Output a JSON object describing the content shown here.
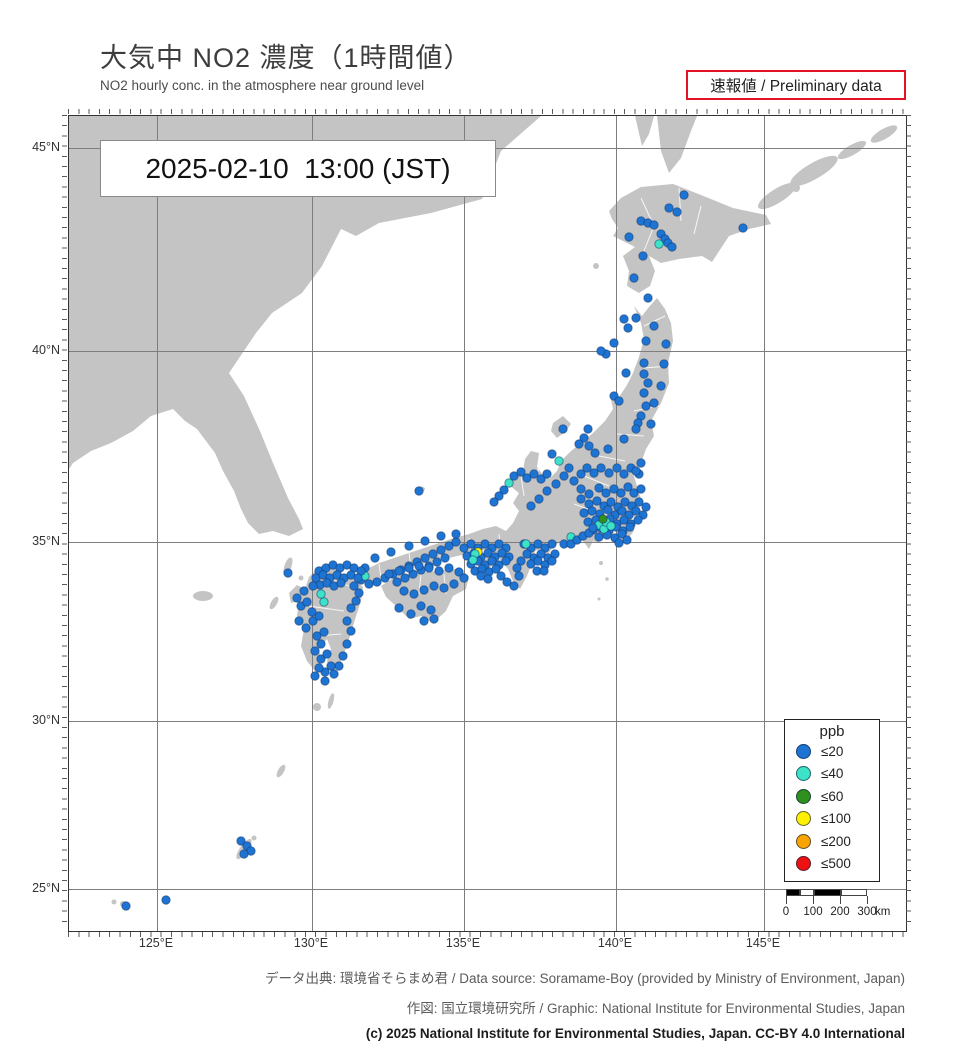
{
  "title": "大気中 NO2 濃度（1時間値）",
  "subtitle": "NO2 hourly conc. in the atmosphere near ground level",
  "preliminary_badge": "速報値 / Preliminary data",
  "timestamp": "2025-02-10  13:00 (JST)",
  "map": {
    "lat_labels": [
      "45°N",
      "40°N",
      "35°N",
      "30°N",
      "25°N"
    ],
    "lon_labels": [
      "125°E",
      "130°E",
      "135°E",
      "140°E",
      "145°E"
    ],
    "land_color": "#c4c4c4",
    "sea_color": "#ffffff",
    "grid_color": "#7d7d7d",
    "dot_colors": {
      "b": "#1e74d2",
      "c": "#3ce3c6",
      "g": "#2f8f1f",
      "y": "#ffef00"
    },
    "stations": [
      [
        615,
        79
      ],
      [
        600,
        92
      ],
      [
        572,
        105
      ],
      [
        579,
        107
      ],
      [
        585,
        109
      ],
      [
        592,
        118
      ],
      [
        596,
        123
      ],
      [
        599,
        127
      ],
      [
        603,
        131
      ],
      [
        574,
        140
      ],
      [
        565,
        162
      ],
      [
        674,
        112
      ],
      [
        560,
        121
      ],
      [
        608,
        96
      ],
      [
        590,
        128,
        "c"
      ],
      [
        579,
        182
      ],
      [
        555,
        203
      ],
      [
        567,
        202
      ],
      [
        559,
        212
      ],
      [
        585,
        210
      ],
      [
        577,
        225
      ],
      [
        597,
        228
      ],
      [
        545,
        227
      ],
      [
        537,
        238
      ],
      [
        532,
        235
      ],
      [
        595,
        248
      ],
      [
        575,
        247
      ],
      [
        575,
        258
      ],
      [
        579,
        267
      ],
      [
        557,
        257
      ],
      [
        545,
        280
      ],
      [
        550,
        285
      ],
      [
        575,
        277
      ],
      [
        592,
        270
      ],
      [
        577,
        290
      ],
      [
        585,
        287
      ],
      [
        572,
        300
      ],
      [
        569,
        307
      ],
      [
        567,
        313
      ],
      [
        582,
        308
      ],
      [
        519,
        313
      ],
      [
        494,
        313
      ],
      [
        515,
        322
      ],
      [
        510,
        328
      ],
      [
        539,
        333
      ],
      [
        555,
        323
      ],
      [
        520,
        330
      ],
      [
        526,
        337
      ],
      [
        490,
        345,
        "c"
      ],
      [
        483,
        338
      ],
      [
        495,
        360
      ],
      [
        487,
        368
      ],
      [
        478,
        375
      ],
      [
        470,
        383
      ],
      [
        500,
        352
      ],
      [
        505,
        365
      ],
      [
        512,
        358
      ],
      [
        518,
        352
      ],
      [
        525,
        357
      ],
      [
        532,
        352
      ],
      [
        540,
        357
      ],
      [
        548,
        352
      ],
      [
        555,
        358
      ],
      [
        562,
        352
      ],
      [
        570,
        358
      ],
      [
        572,
        347
      ],
      [
        567,
        355
      ],
      [
        512,
        373
      ],
      [
        520,
        378
      ],
      [
        530,
        372
      ],
      [
        537,
        377
      ],
      [
        545,
        373
      ],
      [
        552,
        377
      ],
      [
        559,
        371
      ],
      [
        565,
        377
      ],
      [
        572,
        373
      ],
      [
        512,
        383
      ],
      [
        520,
        388
      ],
      [
        528,
        385
      ],
      [
        535,
        390
      ],
      [
        542,
        386
      ],
      [
        549,
        391
      ],
      [
        556,
        386
      ],
      [
        563,
        390
      ],
      [
        570,
        386
      ],
      [
        577,
        391
      ],
      [
        515,
        397
      ],
      [
        523,
        395
      ],
      [
        531,
        398
      ],
      [
        539,
        394
      ],
      [
        546,
        399
      ],
      [
        553,
        395
      ],
      [
        560,
        399
      ],
      [
        567,
        395
      ],
      [
        574,
        399
      ],
      [
        519,
        406
      ],
      [
        527,
        404
      ],
      [
        534,
        407
      ],
      [
        541,
        403
      ],
      [
        548,
        408
      ],
      [
        555,
        404
      ],
      [
        562,
        408
      ],
      [
        569,
        404
      ],
      [
        524,
        414
      ],
      [
        532,
        412
      ],
      [
        540,
        415
      ],
      [
        547,
        411
      ],
      [
        554,
        415
      ],
      [
        561,
        411
      ],
      [
        530,
        421
      ],
      [
        538,
        419
      ],
      [
        546,
        422
      ],
      [
        553,
        418
      ],
      [
        558,
        424
      ],
      [
        550,
        427
      ],
      [
        530,
        409,
        "c"
      ],
      [
        535,
        413,
        "c"
      ],
      [
        537,
        406,
        "c"
      ],
      [
        542,
        410,
        "c"
      ],
      [
        534,
        403,
        "g"
      ],
      [
        440,
        367,
        "c"
      ],
      [
        445,
        360
      ],
      [
        452,
        356
      ],
      [
        458,
        362
      ],
      [
        465,
        358
      ],
      [
        472,
        363
      ],
      [
        478,
        358
      ],
      [
        435,
        374
      ],
      [
        430,
        380
      ],
      [
        425,
        386
      ],
      [
        462,
        390
      ],
      [
        502,
        421,
        "c"
      ],
      [
        495,
        428
      ],
      [
        502,
        428
      ],
      [
        508,
        424
      ],
      [
        514,
        420
      ],
      [
        520,
        417
      ],
      [
        524,
        412
      ],
      [
        455,
        428
      ],
      [
        462,
        432
      ],
      [
        469,
        428
      ],
      [
        476,
        432
      ],
      [
        483,
        428
      ],
      [
        458,
        438
      ],
      [
        465,
        442
      ],
      [
        472,
        438
      ],
      [
        479,
        442
      ],
      [
        486,
        438
      ],
      [
        462,
        448
      ],
      [
        469,
        445
      ],
      [
        476,
        449
      ],
      [
        483,
        445
      ],
      [
        452,
        445
      ],
      [
        448,
        452
      ],
      [
        468,
        455
      ],
      [
        475,
        455
      ],
      [
        457,
        428,
        "c"
      ],
      [
        395,
        432
      ],
      [
        402,
        428
      ],
      [
        409,
        432
      ],
      [
        416,
        428
      ],
      [
        423,
        432
      ],
      [
        430,
        428
      ],
      [
        437,
        432
      ],
      [
        398,
        440
      ],
      [
        405,
        437
      ],
      [
        412,
        441
      ],
      [
        419,
        437
      ],
      [
        426,
        441
      ],
      [
        433,
        437
      ],
      [
        440,
        441
      ],
      [
        402,
        448
      ],
      [
        409,
        445
      ],
      [
        416,
        449
      ],
      [
        423,
        445
      ],
      [
        430,
        449
      ],
      [
        437,
        445
      ],
      [
        406,
        455
      ],
      [
        413,
        453
      ],
      [
        420,
        456
      ],
      [
        427,
        453
      ],
      [
        412,
        460
      ],
      [
        419,
        463
      ],
      [
        432,
        460
      ],
      [
        438,
        466
      ],
      [
        445,
        470
      ],
      [
        450,
        460
      ],
      [
        409,
        436,
        "y"
      ],
      [
        406,
        438,
        "c"
      ],
      [
        404,
        444,
        "c"
      ],
      [
        380,
        430
      ],
      [
        372,
        434
      ],
      [
        364,
        438
      ],
      [
        356,
        442
      ],
      [
        348,
        446
      ],
      [
        340,
        450
      ],
      [
        332,
        454
      ],
      [
        324,
        458
      ],
      [
        316,
        462
      ],
      [
        308,
        466
      ],
      [
        300,
        468
      ],
      [
        292,
        464
      ],
      [
        387,
        426
      ],
      [
        376,
        442
      ],
      [
        368,
        446
      ],
      [
        360,
        450
      ],
      [
        352,
        454
      ],
      [
        344,
        458
      ],
      [
        336,
        462
      ],
      [
        328,
        466
      ],
      [
        387,
        418
      ],
      [
        372,
        420
      ],
      [
        356,
        425
      ],
      [
        340,
        430
      ],
      [
        322,
        436
      ],
      [
        306,
        442
      ],
      [
        296,
        452
      ],
      [
        350,
        375
      ],
      [
        296,
        460,
        "c"
      ],
      [
        320,
        458
      ],
      [
        330,
        455
      ],
      [
        340,
        452
      ],
      [
        350,
        450
      ],
      [
        360,
        452
      ],
      [
        370,
        455
      ],
      [
        380,
        452
      ],
      [
        390,
        456
      ],
      [
        395,
        462
      ],
      [
        385,
        468
      ],
      [
        375,
        472
      ],
      [
        365,
        470
      ],
      [
        355,
        474
      ],
      [
        345,
        478
      ],
      [
        335,
        475
      ],
      [
        352,
        490
      ],
      [
        362,
        494
      ],
      [
        342,
        498
      ],
      [
        330,
        492
      ],
      [
        355,
        505
      ],
      [
        365,
        503
      ],
      [
        250,
        455
      ],
      [
        257,
        452
      ],
      [
        264,
        449
      ],
      [
        271,
        452
      ],
      [
        278,
        449
      ],
      [
        285,
        452
      ],
      [
        292,
        455
      ],
      [
        247,
        462
      ],
      [
        254,
        459
      ],
      [
        261,
        462
      ],
      [
        268,
        459
      ],
      [
        275,
        462
      ],
      [
        282,
        459
      ],
      [
        289,
        462
      ],
      [
        251,
        469
      ],
      [
        258,
        467
      ],
      [
        265,
        470
      ],
      [
        272,
        467
      ],
      [
        244,
        470
      ],
      [
        252,
        478,
        "c"
      ],
      [
        255,
        486,
        "c"
      ],
      [
        235,
        475
      ],
      [
        228,
        482
      ],
      [
        232,
        490
      ],
      [
        238,
        486
      ],
      [
        230,
        505
      ],
      [
        237,
        512
      ],
      [
        244,
        505
      ],
      [
        250,
        500
      ],
      [
        243,
        496
      ],
      [
        248,
        520
      ],
      [
        255,
        516
      ],
      [
        252,
        528
      ],
      [
        246,
        535
      ],
      [
        252,
        543
      ],
      [
        258,
        538
      ],
      [
        285,
        470
      ],
      [
        290,
        477
      ],
      [
        287,
        485
      ],
      [
        282,
        492
      ],
      [
        278,
        505
      ],
      [
        282,
        515
      ],
      [
        278,
        528
      ],
      [
        274,
        540
      ],
      [
        270,
        550
      ],
      [
        262,
        550
      ],
      [
        256,
        556
      ],
      [
        250,
        552
      ],
      [
        246,
        560
      ],
      [
        256,
        565
      ],
      [
        265,
        558
      ],
      [
        219,
        457
      ],
      [
        172,
        725
      ],
      [
        178,
        730
      ],
      [
        182,
        735
      ],
      [
        175,
        738
      ],
      [
        97,
        784
      ],
      [
        57,
        790
      ]
    ]
  },
  "legend": {
    "title": "ppb",
    "items": [
      {
        "label": "≤20",
        "color": "#1e74d2"
      },
      {
        "label": "≤40",
        "color": "#3ce3c6"
      },
      {
        "label": "≤60",
        "color": "#2f8f1f"
      },
      {
        "label": "≤100",
        "color": "#ffef00"
      },
      {
        "label": "≤200",
        "color": "#f9a400"
      },
      {
        "label": "≤500",
        "color": "#ee1111"
      }
    ]
  },
  "scalebar": {
    "labels": [
      "0",
      "100",
      "200",
      "300",
      "km"
    ]
  },
  "footer": {
    "line1": "データ出典: 環境省そらまめ君 / Data source: Soramame-Boy (provided by Ministry of Environment, Japan)",
    "line2": "作図: 国立環境研究所 / Graphic: National Institute for Environmental Studies, Japan",
    "line3": "(c) 2025 National Institute for Environmental Studies, Japan. CC-BY 4.0 International"
  }
}
